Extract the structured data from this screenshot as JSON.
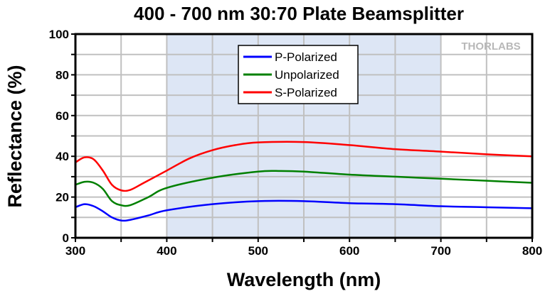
{
  "chart_data": {
    "type": "line",
    "title": "400 - 700 nm 30:70 Plate Beamsplitter",
    "xlabel": "Wavelength (nm)",
    "ylabel": "Reflectance (%)",
    "xlim": [
      300,
      800
    ],
    "ylim": [
      0,
      100
    ],
    "xticks": [
      300,
      400,
      500,
      600,
      700,
      800
    ],
    "yticks": [
      0,
      20,
      40,
      60,
      80,
      100
    ],
    "grid": true,
    "legend_placement": "top-center",
    "shaded_region": {
      "x": [
        400,
        700
      ],
      "color": "#dde6f5"
    },
    "watermark": "THORLABS",
    "series": [
      {
        "name": "P-Polarized",
        "color": "#0000ff",
        "x": [
          300,
          310,
          320,
          330,
          340,
          350,
          360,
          380,
          400,
          450,
          500,
          550,
          600,
          650,
          700,
          750,
          800
        ],
        "y": [
          15,
          16.5,
          15.5,
          13,
          10,
          8.5,
          8.8,
          11,
          13.5,
          16.5,
          18,
          18,
          17,
          16.5,
          15.5,
          15,
          14.5
        ]
      },
      {
        "name": "Unpolarized",
        "color": "#008000",
        "x": [
          300,
          310,
          320,
          330,
          340,
          350,
          360,
          380,
          400,
          450,
          500,
          525,
          550,
          600,
          650,
          700,
          750,
          800
        ],
        "y": [
          26,
          27.5,
          27,
          24,
          18,
          16,
          16,
          20,
          24.5,
          29.5,
          32.5,
          32.8,
          32.5,
          31,
          30,
          29,
          28,
          27
        ]
      },
      {
        "name": "S-Polarized",
        "color": "#ff0000",
        "x": [
          300,
          310,
          320,
          330,
          340,
          350,
          360,
          375,
          400,
          425,
          450,
          475,
          500,
          550,
          600,
          650,
          700,
          750,
          800
        ],
        "y": [
          37,
          39.5,
          38.5,
          33,
          26,
          23.3,
          23.5,
          27,
          33,
          39,
          43,
          45.5,
          46.8,
          47,
          45.5,
          43.5,
          42.3,
          41,
          40
        ]
      }
    ]
  }
}
